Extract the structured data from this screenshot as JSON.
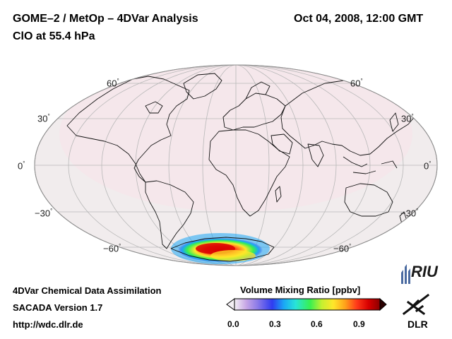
{
  "header": {
    "title": "GOME–2 / MetOp – 4DVar Analysis",
    "subtitle": "ClO at 55.4 hPa",
    "datetime": "Oct 04, 2008, 12:00 GMT"
  },
  "map": {
    "projection": "Mollweide",
    "lat_labels_left": [
      "60",
      "30",
      "0",
      "−30",
      "−60"
    ],
    "lat_labels_right": [
      "60",
      "30",
      "0",
      "−30",
      "−60"
    ],
    "degree_symbol": "°",
    "colors": {
      "background_field": "#f1eced",
      "coastline": "#111111",
      "grid": "#bbbbbb"
    }
  },
  "colorbar": {
    "title": "Volume Mixing Ratio [ppbv]",
    "ticks": [
      "0.0",
      "0.3",
      "0.6",
      "0.9"
    ],
    "range": [
      0.0,
      1.0
    ],
    "colors": [
      "#f4f0f4",
      "#c7a6e6",
      "#8a7ae8",
      "#2f3cf0",
      "#1aa8f5",
      "#28e4d8",
      "#38f050",
      "#c6f030",
      "#ffe62a",
      "#ffa21a",
      "#ff3a1a",
      "#d80000",
      "#8a0000"
    ]
  },
  "footer": {
    "line1": "4DVar Chemical Data Assimilation",
    "line2": "SACADA Version 1.7",
    "url": "http://wdc.dlr.de"
  },
  "logos": {
    "riu": "RIU",
    "dlr": "DLR"
  }
}
